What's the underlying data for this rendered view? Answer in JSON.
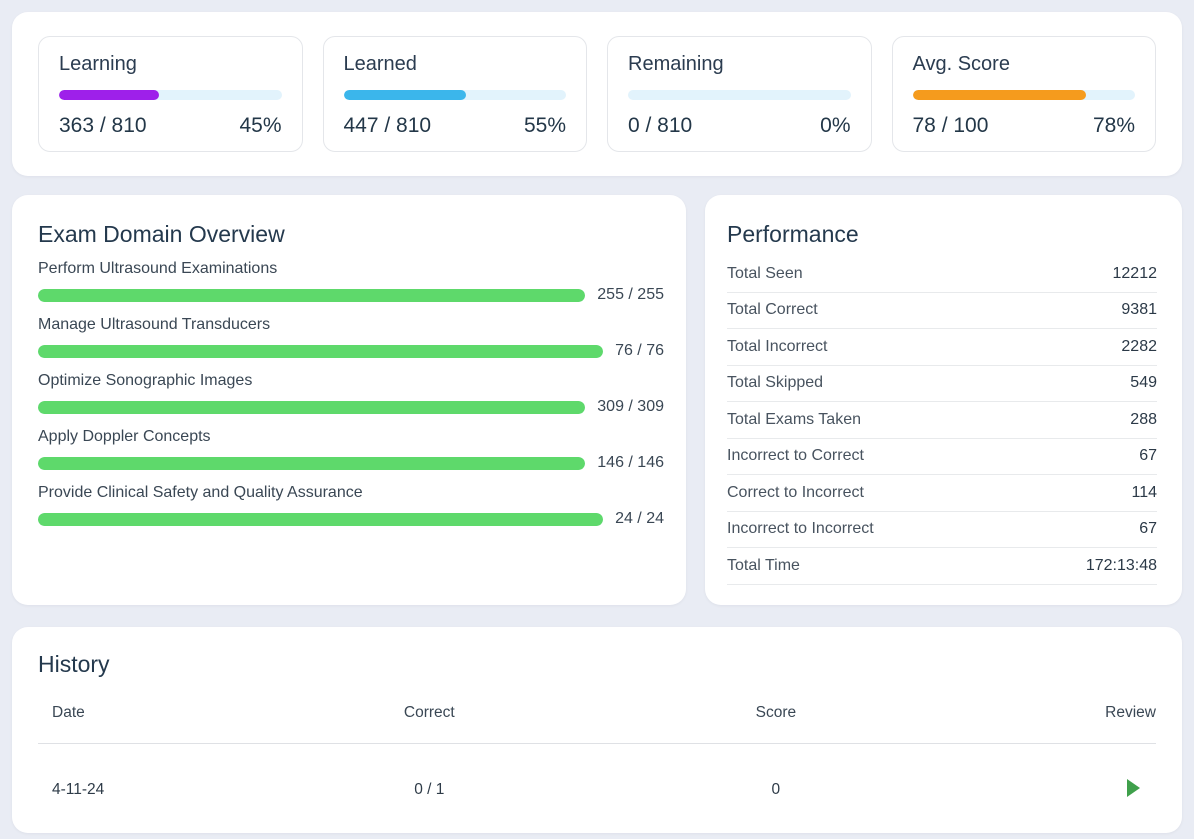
{
  "colors": {
    "page_bg": "#e9ecf4",
    "track": "#e2f3fc",
    "learning": "#9e20ea",
    "learned": "#3bb6eb",
    "remaining": "#3bb6eb",
    "avg_score": "#f59b1d",
    "domain_bar": "#5ed96b",
    "play": "#3fa04b"
  },
  "stats": {
    "cards": [
      {
        "title": "Learning",
        "value": "363 / 810",
        "percent": 45,
        "percent_label": "45%",
        "color": "#9e20ea"
      },
      {
        "title": "Learned",
        "value": "447 / 810",
        "percent": 55,
        "percent_label": "55%",
        "color": "#3bb6eb"
      },
      {
        "title": "Remaining",
        "value": "0 / 810",
        "percent": 0,
        "percent_label": "0%",
        "color": "#3bb6eb"
      },
      {
        "title": "Avg. Score",
        "value": "78 / 100",
        "percent": 78,
        "percent_label": "78%",
        "color": "#f59b1d"
      }
    ]
  },
  "domain_overview": {
    "title": "Exam Domain Overview",
    "bar_color": "#5ed96b",
    "items": [
      {
        "label": "Perform Ultrasound Examinations",
        "value": "255 / 255",
        "percent": 100
      },
      {
        "label": "Manage Ultrasound Transducers",
        "value": "76 / 76",
        "percent": 100
      },
      {
        "label": "Optimize Sonographic Images",
        "value": "309 / 309",
        "percent": 100
      },
      {
        "label": "Apply Doppler Concepts",
        "value": "146 / 146",
        "percent": 100
      },
      {
        "label": "Provide Clinical Safety and Quality Assurance",
        "value": "24 / 24",
        "percent": 100
      }
    ]
  },
  "performance": {
    "title": "Performance",
    "rows": [
      {
        "label": "Total Seen",
        "value": "12212"
      },
      {
        "label": "Total Correct",
        "value": "9381"
      },
      {
        "label": "Total Incorrect",
        "value": "2282"
      },
      {
        "label": "Total Skipped",
        "value": "549"
      },
      {
        "label": "Total Exams Taken",
        "value": "288"
      },
      {
        "label": "Incorrect to Correct",
        "value": "67"
      },
      {
        "label": "Correct to Incorrect",
        "value": "114"
      },
      {
        "label": "Incorrect to Incorrect",
        "value": "67"
      },
      {
        "label": "Total Time",
        "value": "172:13:48"
      }
    ]
  },
  "history": {
    "title": "History",
    "columns": [
      "Date",
      "Correct",
      "Score",
      "Review"
    ],
    "rows": [
      {
        "date": "4-11-24",
        "correct": "0 / 1",
        "score": "0",
        "review_icon": "play-icon"
      }
    ]
  }
}
